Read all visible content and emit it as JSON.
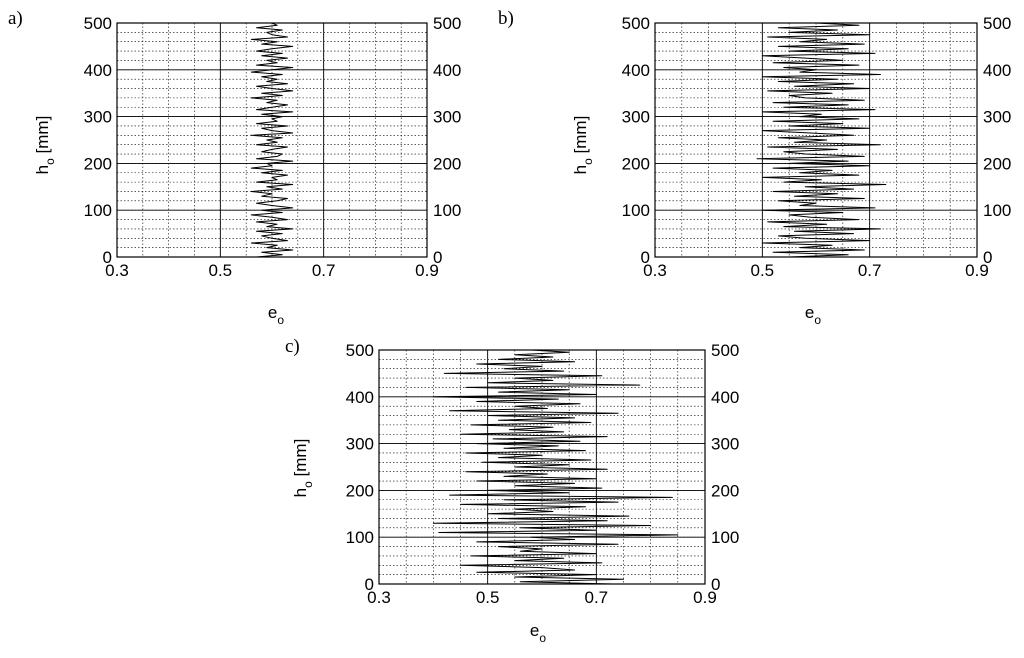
{
  "figure": {
    "panels": [
      {
        "id": "a",
        "label": "a)"
      },
      {
        "id": "b",
        "label": "b)"
      },
      {
        "id": "c",
        "label": "c)"
      }
    ],
    "xlabel_main": "e",
    "xlabel_sub": "o",
    "ylabel_main": "h",
    "ylabel_sub": "o",
    "ylabel_unit": " [mm]"
  },
  "chart_data": [
    {
      "panel": "a",
      "type": "line",
      "title": "",
      "xlabel": "e_o",
      "ylabel": "h_o [mm]",
      "xlim": [
        0.3,
        0.9
      ],
      "ylim": [
        0,
        500
      ],
      "xticks": [
        "0.3",
        "0.5",
        "0.7",
        "0.9"
      ],
      "yticks": [
        "0",
        "100",
        "200",
        "300",
        "400",
        "500"
      ],
      "right_axis_ticks": [
        "0",
        "100",
        "200",
        "300",
        "400",
        "500"
      ],
      "grid": true,
      "series": [
        {
          "x": [
            0.57,
            0.62,
            0.58,
            0.64,
            0.59,
            0.61,
            0.56,
            0.63,
            0.6,
            0.58,
            0.62,
            0.57,
            0.64,
            0.59,
            0.61,
            0.57,
            0.63,
            0.6,
            0.56,
            0.62,
            0.58,
            0.64,
            0.6,
            0.57,
            0.61,
            0.63,
            0.58,
            0.6,
            0.56,
            0.62,
            0.59,
            0.64,
            0.57,
            0.61,
            0.6,
            0.63,
            0.58,
            0.62,
            0.56,
            0.6,
            0.59,
            0.64,
            0.57,
            0.61,
            0.62,
            0.58,
            0.6,
            0.63,
            0.57,
            0.61,
            0.59,
            0.62,
            0.56,
            0.64,
            0.6,
            0.58,
            0.63,
            0.57,
            0.61,
            0.6,
            0.62,
            0.58,
            0.64,
            0.57,
            0.6,
            0.63,
            0.59,
            0.61,
            0.56,
            0.62,
            0.58,
            0.64,
            0.6,
            0.57,
            0.63,
            0.59,
            0.61,
            0.58,
            0.62,
            0.56,
            0.6,
            0.64,
            0.57,
            0.61,
            0.59,
            0.63,
            0.58,
            0.62,
            0.57,
            0.6,
            0.64,
            0.58,
            0.61,
            0.56,
            0.63,
            0.6,
            0.59,
            0.62,
            0.57,
            0.61,
            0.6
          ],
          "y": [
            0,
            5,
            10,
            15,
            20,
            25,
            30,
            35,
            40,
            45,
            50,
            55,
            60,
            65,
            70,
            75,
            80,
            85,
            90,
            95,
            100,
            105,
            110,
            115,
            120,
            125,
            130,
            135,
            140,
            145,
            150,
            155,
            160,
            165,
            170,
            175,
            180,
            185,
            190,
            195,
            200,
            205,
            210,
            215,
            220,
            225,
            230,
            235,
            240,
            245,
            250,
            255,
            260,
            265,
            270,
            275,
            280,
            285,
            290,
            295,
            300,
            305,
            310,
            315,
            320,
            325,
            330,
            335,
            340,
            345,
            350,
            355,
            360,
            365,
            370,
            375,
            380,
            385,
            390,
            395,
            400,
            405,
            410,
            415,
            420,
            425,
            430,
            435,
            440,
            445,
            450,
            455,
            460,
            465,
            470,
            475,
            480,
            485,
            490,
            495,
            500
          ]
        }
      ]
    },
    {
      "panel": "b",
      "type": "line",
      "title": "",
      "xlabel": "e_o",
      "ylabel": "h_o [mm]",
      "xlim": [
        0.3,
        0.9
      ],
      "ylim": [
        0,
        500
      ],
      "xticks": [
        "0.3",
        "0.5",
        "0.7",
        "0.9"
      ],
      "yticks": [
        "0",
        "100",
        "200",
        "300",
        "400",
        "500"
      ],
      "right_axis_ticks": [
        "0",
        "100",
        "200",
        "300",
        "400",
        "500"
      ],
      "grid": true,
      "series": [
        {
          "x": [
            0.55,
            0.66,
            0.52,
            0.69,
            0.57,
            0.63,
            0.5,
            0.7,
            0.58,
            0.53,
            0.67,
            0.56,
            0.72,
            0.54,
            0.62,
            0.51,
            0.68,
            0.59,
            0.55,
            0.65,
            0.5,
            0.71,
            0.57,
            0.6,
            0.53,
            0.69,
            0.56,
            0.64,
            0.52,
            0.67,
            0.58,
            0.73,
            0.54,
            0.61,
            0.5,
            0.68,
            0.57,
            0.63,
            0.52,
            0.7,
            0.55,
            0.66,
            0.49,
            0.69,
            0.58,
            0.54,
            0.64,
            0.51,
            0.72,
            0.56,
            0.62,
            0.53,
            0.67,
            0.59,
            0.5,
            0.7,
            0.55,
            0.65,
            0.52,
            0.68,
            0.57,
            0.61,
            0.5,
            0.71,
            0.54,
            0.66,
            0.52,
            0.69,
            0.58,
            0.55,
            0.63,
            0.51,
            0.7,
            0.56,
            0.67,
            0.53,
            0.64,
            0.5,
            0.72,
            0.57,
            0.6,
            0.54,
            0.68,
            0.52,
            0.65,
            0.58,
            0.5,
            0.71,
            0.55,
            0.66,
            0.53,
            0.69,
            0.57,
            0.62,
            0.51,
            0.7,
            0.55,
            0.64,
            0.53,
            0.68,
            0.6
          ],
          "y": [
            0,
            5,
            10,
            15,
            20,
            25,
            30,
            35,
            40,
            45,
            50,
            55,
            60,
            65,
            70,
            75,
            80,
            85,
            90,
            95,
            100,
            105,
            110,
            115,
            120,
            125,
            130,
            135,
            140,
            145,
            150,
            155,
            160,
            165,
            170,
            175,
            180,
            185,
            190,
            195,
            200,
            205,
            210,
            215,
            220,
            225,
            230,
            235,
            240,
            245,
            250,
            255,
            260,
            265,
            270,
            275,
            280,
            285,
            290,
            295,
            300,
            305,
            310,
            315,
            320,
            325,
            330,
            335,
            340,
            345,
            350,
            355,
            360,
            365,
            370,
            375,
            380,
            385,
            390,
            395,
            400,
            405,
            410,
            415,
            420,
            425,
            430,
            435,
            440,
            445,
            450,
            455,
            460,
            465,
            470,
            475,
            480,
            485,
            490,
            495,
            500
          ]
        }
      ]
    },
    {
      "panel": "c",
      "type": "line",
      "title": "",
      "xlabel": "e_o",
      "ylabel": "h_o [mm]",
      "xlim": [
        0.3,
        0.9
      ],
      "ylim": [
        0,
        500
      ],
      "xticks": [
        "0.3",
        "0.5",
        "0.7",
        "0.9"
      ],
      "yticks": [
        "0",
        "100",
        "200",
        "300",
        "400",
        "500"
      ],
      "right_axis_ticks": [
        "0",
        "100",
        "200",
        "300",
        "400",
        "500"
      ],
      "grid": true,
      "series": [
        {
          "x": [
            0.73,
            0.56,
            0.75,
            0.55,
            0.7,
            0.48,
            0.66,
            0.6,
            0.45,
            0.71,
            0.55,
            0.64,
            0.47,
            0.7,
            0.56,
            0.6,
            0.52,
            0.74,
            0.48,
            0.66,
            0.58,
            0.85,
            0.41,
            0.7,
            0.56,
            0.8,
            0.4,
            0.72,
            0.52,
            0.76,
            0.5,
            0.62,
            0.55,
            0.68,
            0.45,
            0.74,
            0.53,
            0.84,
            0.43,
            0.65,
            0.5,
            0.71,
            0.55,
            0.66,
            0.48,
            0.7,
            0.53,
            0.61,
            0.46,
            0.72,
            0.55,
            0.65,
            0.49,
            0.69,
            0.52,
            0.6,
            0.46,
            0.68,
            0.53,
            0.63,
            0.48,
            0.67,
            0.51,
            0.72,
            0.45,
            0.64,
            0.54,
            0.62,
            0.47,
            0.69,
            0.52,
            0.66,
            0.5,
            0.74,
            0.43,
            0.61,
            0.55,
            0.67,
            0.48,
            0.63,
            0.4,
            0.7,
            0.52,
            0.65,
            0.46,
            0.78,
            0.5,
            0.62,
            0.55,
            0.71,
            0.42,
            0.64,
            0.53,
            0.6,
            0.48,
            0.66,
            0.52,
            0.62,
            0.55,
            0.65,
            0.58
          ],
          "y": [
            0,
            5,
            10,
            15,
            20,
            25,
            30,
            35,
            40,
            45,
            50,
            55,
            60,
            65,
            70,
            75,
            80,
            85,
            90,
            95,
            100,
            105,
            110,
            115,
            120,
            125,
            130,
            135,
            140,
            145,
            150,
            155,
            160,
            165,
            170,
            175,
            180,
            185,
            190,
            195,
            200,
            205,
            210,
            215,
            220,
            225,
            230,
            235,
            240,
            245,
            250,
            255,
            260,
            265,
            270,
            275,
            280,
            285,
            290,
            295,
            300,
            305,
            310,
            315,
            320,
            325,
            330,
            335,
            340,
            345,
            350,
            355,
            360,
            365,
            370,
            375,
            380,
            385,
            390,
            395,
            400,
            405,
            410,
            415,
            420,
            425,
            430,
            435,
            440,
            445,
            450,
            455,
            460,
            465,
            470,
            475,
            480,
            485,
            490,
            495,
            500
          ]
        }
      ]
    }
  ]
}
